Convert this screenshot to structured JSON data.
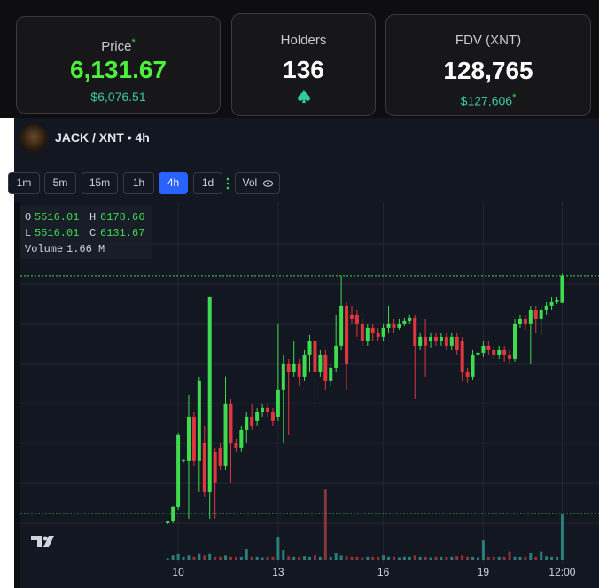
{
  "stats": [
    {
      "label": "Price",
      "mark": "*",
      "value": "6,131.67",
      "sub": "$6,076.51"
    },
    {
      "label": "Holders",
      "value": "136"
    },
    {
      "label": "FDV (XNT)",
      "value": "128,765",
      "sub": "$127,606",
      "sub_mark": "*"
    }
  ],
  "pair": {
    "title": "JACK / XNT",
    "separator": "•",
    "interval": "4h"
  },
  "toolbar": {
    "intervals": [
      "1m",
      "5m",
      "15m",
      "1h",
      "4h",
      "1d"
    ],
    "active": 4,
    "volume_button": "Vol"
  },
  "chart_data": {
    "type": "candlestick",
    "open": [
      552,
      592,
      912,
      1952,
      1952,
      2952,
      1952,
      2352,
      1252,
      2152,
      2252,
      1852,
      3252,
      2352,
      2252,
      2652,
      2952,
      2852,
      3052,
      3152,
      3052,
      2952,
      3552,
      4152,
      3952,
      4152,
      3852,
      4352,
      4652,
      3952,
      4352,
      3752,
      4052,
      4552,
      5452,
      5252,
      5252,
      5052,
      4652,
      4952,
      4852,
      4752,
      4952,
      5052,
      4952,
      5052,
      5112,
      5192,
      4552,
      4752,
      4652,
      4752,
      4652,
      4752,
      4552,
      4752,
      4652,
      3952,
      3852,
      4352,
      4392,
      4552,
      4452,
      4352,
      4452,
      4352,
      4252,
      5052,
      5152,
      5052,
      5352,
      5152,
      5352,
      5452,
      5552,
      5516.01
    ],
    "high": [
      592,
      952,
      2592,
      2012,
      3452,
      3052,
      3852,
      2752,
      5652,
      2252,
      2352,
      3852,
      3352,
      2452,
      2752,
      3052,
      3252,
      3152,
      3252,
      3252,
      3152,
      5052,
      4352,
      4252,
      4652,
      4252,
      4452,
      4792,
      4752,
      4452,
      4452,
      4152,
      5252,
      6132,
      5552,
      5452,
      5352,
      5152,
      5052,
      5052,
      4952,
      5052,
      5452,
      5152,
      5152,
      5192,
      5252,
      5252,
      4852,
      5152,
      4852,
      4852,
      4832,
      4852,
      4852,
      4852,
      4752,
      4052,
      4452,
      4452,
      4652,
      4652,
      4552,
      4552,
      4552,
      4452,
      5152,
      5252,
      5252,
      5452,
      5452,
      5452,
      5552,
      5652,
      5652,
      6178.66
    ],
    "low": [
      532,
      552,
      852,
      1912,
      652,
      1852,
      1252,
      1152,
      652,
      652,
      1752,
      1752,
      1452,
      2152,
      2152,
      2352,
      2652,
      2752,
      2952,
      2952,
      2752,
      2852,
      2352,
      2552,
      3852,
      3652,
      3752,
      3952,
      3252,
      3852,
      3552,
      3652,
      3952,
      4452,
      3552,
      5052,
      4752,
      4552,
      4552,
      4652,
      4652,
      4652,
      4852,
      4852,
      4912,
      4992,
      5052,
      3352,
      4452,
      3852,
      4512,
      4552,
      4552,
      4452,
      4452,
      4352,
      3752,
      3712,
      3792,
      4252,
      4312,
      4352,
      4252,
      4252,
      4192,
      4152,
      4192,
      4952,
      4912,
      4152,
      4852,
      4792,
      5252,
      5352,
      5492,
      5516.01
    ],
    "close": [
      592,
      912,
      2552,
      1972,
      2952,
      1952,
      3752,
      1252,
      5652,
      1452,
      1852,
      3252,
      2352,
      2252,
      2652,
      2952,
      2752,
      3052,
      3152,
      3052,
      2852,
      3552,
      4152,
      3952,
      4152,
      3852,
      4352,
      4652,
      3952,
      4352,
      3752,
      4052,
      4552,
      5452,
      4152,
      5152,
      5052,
      4652,
      4952,
      4852,
      4752,
      4952,
      5052,
      4952,
      5052,
      5112,
      5192,
      4552,
      4752,
      4552,
      4752,
      4652,
      4752,
      4552,
      4752,
      4452,
      3952,
      3852,
      4352,
      4392,
      4552,
      4452,
      4352,
      4452,
      4352,
      4252,
      5052,
      5152,
      5052,
      5352,
      5152,
      5352,
      5452,
      5552,
      5592,
      6131.67
    ],
    "volume": [
      0.05,
      0.15,
      0.2,
      0.1,
      0.15,
      0.1,
      0.2,
      0.15,
      0.2,
      0.1,
      0.1,
      0.15,
      0.1,
      0.1,
      0.1,
      0.38,
      0.1,
      0.1,
      0.08,
      0.1,
      0.1,
      0.8,
      0.35,
      0.12,
      0.1,
      0.1,
      0.12,
      0.1,
      0.15,
      0.1,
      2.55,
      0.1,
      0.25,
      0.15,
      0.12,
      0.1,
      0.1,
      0.08,
      0.1,
      0.1,
      0.1,
      0.15,
      0.1,
      0.1,
      0.08,
      0.1,
      0.1,
      0.15,
      0.1,
      0.1,
      0.08,
      0.1,
      0.1,
      0.1,
      0.1,
      0.12,
      0.15,
      0.1,
      0.1,
      0.08,
      0.7,
      0.1,
      0.1,
      0.1,
      0.1,
      0.3,
      0.1,
      0.1,
      0.1,
      0.25,
      0.1,
      0.3,
      0.12,
      0.1,
      0.1,
      1.66
    ],
    "up_color": "#3ddc4f",
    "down_color": "#e0363d",
    "volume_up_color": "#2a7f78",
    "volume_down_color": "#8c3539",
    "xlim": [
      -28,
      82
    ],
    "ylim": [
      -650,
      7790
    ],
    "vlim": [
      0,
      4
    ],
    "xticks": [
      {
        "value": 2,
        "label": "10"
      },
      {
        "value": 21,
        "label": "13"
      },
      {
        "value": 41,
        "label": "16"
      },
      {
        "value": 60,
        "label": "19"
      },
      {
        "value": 75,
        "label": "12:00"
      }
    ],
    "legend": {
      "open": "O",
      "high": "H",
      "low": "L",
      "close": "C",
      "volume": "Volume",
      "volume_value_label": "1.66 M"
    }
  }
}
